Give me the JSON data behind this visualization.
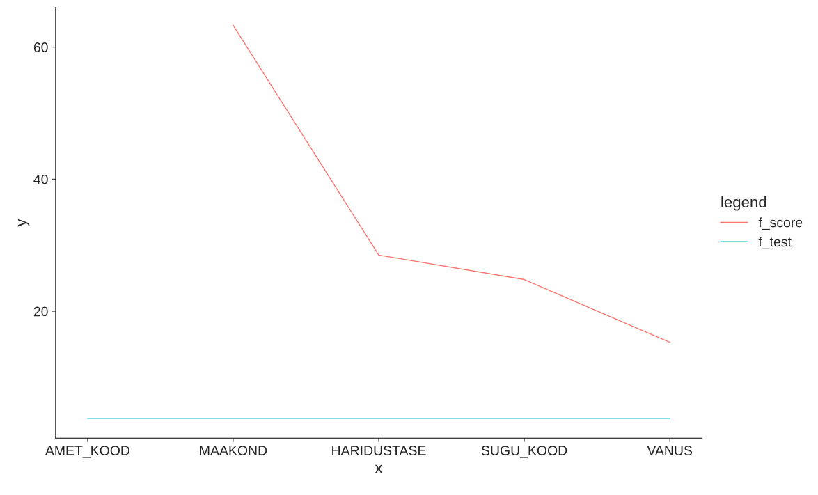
{
  "chart_data": {
    "type": "line",
    "xlabel": "x",
    "ylabel": "y",
    "legend_title": "legend",
    "categories": [
      "AMET_KOOD",
      "MAAKOND",
      "HARIDUSTASE",
      "SUGU_KOOD",
      "VANUS"
    ],
    "series": [
      {
        "name": "f_score",
        "color": "#f8766d",
        "values": [
          null,
          63.3,
          28.5,
          24.8,
          15.3
        ]
      },
      {
        "name": "f_test",
        "color": "#00bfc4",
        "values": [
          3.8,
          3.8,
          3.8,
          3.8,
          3.8
        ]
      }
    ],
    "ylim": [
      0.8,
      66
    ],
    "yticks": [
      20,
      40,
      60
    ],
    "grid": false,
    "legend": "right",
    "marker": "none",
    "line_style": "solid"
  }
}
